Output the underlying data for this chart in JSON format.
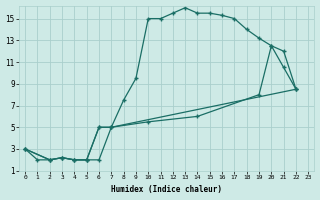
{
  "xlabel": "Humidex (Indice chaleur)",
  "bg_color": "#ceeae6",
  "grid_color": "#aacfcc",
  "line_color": "#1a6e65",
  "xlim": [
    -0.5,
    23.5
  ],
  "ylim": [
    1,
    16.2
  ],
  "xticks": [
    0,
    1,
    2,
    3,
    4,
    5,
    6,
    7,
    8,
    9,
    10,
    11,
    12,
    13,
    14,
    15,
    16,
    17,
    18,
    19,
    20,
    21,
    22,
    23
  ],
  "yticks": [
    1,
    3,
    5,
    7,
    9,
    11,
    13,
    15
  ],
  "curve1_x": [
    0,
    1,
    2,
    3,
    4,
    5,
    6,
    7,
    8,
    9,
    10,
    11,
    12,
    13,
    14,
    15,
    16,
    17,
    18,
    19,
    20,
    21,
    22
  ],
  "curve1_y": [
    3,
    2,
    2,
    2.2,
    2,
    2,
    2,
    5,
    7.5,
    9.5,
    15,
    15,
    15.5,
    16,
    15.5,
    15.5,
    15.3,
    15,
    14,
    13.2,
    12.5,
    10.5,
    8.5
  ],
  "curve2_x": [
    0,
    2,
    3,
    4,
    5,
    6,
    7,
    22
  ],
  "curve2_y": [
    3,
    2,
    2.2,
    2,
    2,
    5,
    5,
    8.5
  ],
  "curve3_x": [
    0,
    2,
    3,
    4,
    5,
    6,
    7,
    10,
    14,
    19,
    20,
    21,
    22
  ],
  "curve3_y": [
    3,
    2,
    2.2,
    2,
    2,
    5,
    5,
    5.5,
    6,
    8,
    12.5,
    12,
    8.5
  ]
}
